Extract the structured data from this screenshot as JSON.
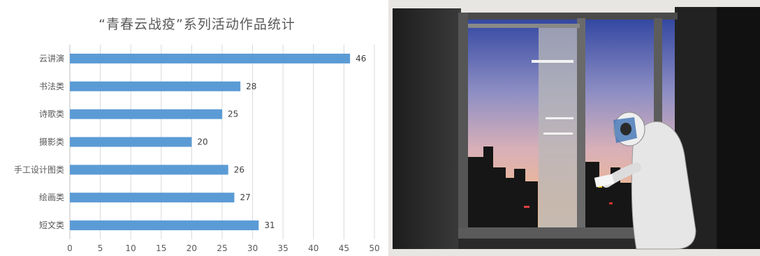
{
  "chart_data": {
    "type": "bar",
    "orientation": "horizontal",
    "title": "“青春云战疫”系列活动作品统计",
    "categories": [
      "云讲演",
      "书法类",
      "诗歌类",
      "摄影类",
      "手工设计图类",
      "绘画类",
      "短文类"
    ],
    "values": [
      46,
      28,
      25,
      20,
      26,
      27,
      31
    ],
    "xlim": [
      0,
      50
    ],
    "xticks": [
      0,
      5,
      10,
      15,
      20,
      25,
      30,
      35,
      40,
      45,
      50
    ],
    "grid": true,
    "legend": "none",
    "bar_color": "#5b9bd5"
  },
  "artwork": {
    "subject": "painting of a medical worker in protective suit at a window with city skyline at dusk",
    "colors": {
      "sky_top": "#3a4fa8",
      "sky_mid": "#b8a6c8",
      "sky_low": "#f0b48c",
      "frame": "#4a4a4a",
      "wall": "#2b2b2b",
      "suit": "#eaeaea"
    }
  }
}
